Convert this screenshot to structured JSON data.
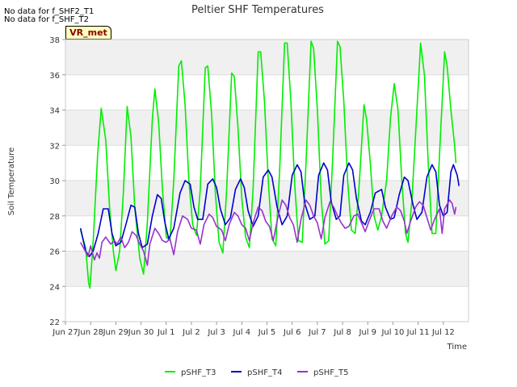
{
  "notices": [
    "No data for f_SHF2_T1",
    "No data for f_SHF_T2"
  ],
  "badge": "VR_met",
  "chart_data": {
    "type": "line",
    "title": "Peltier SHF Temperatures",
    "xlabel": "Time",
    "ylabel": "Soil Temperature",
    "xlim": [
      0,
      16
    ],
    "ylim": [
      22,
      38
    ],
    "yticks": [
      22,
      24,
      26,
      28,
      30,
      32,
      34,
      36,
      38
    ],
    "xticks": [
      {
        "x": 0,
        "label": "Jun 27"
      },
      {
        "x": 1,
        "label": "Jun 28"
      },
      {
        "x": 2,
        "label": "Jun 29"
      },
      {
        "x": 3,
        "label": "Jun 30"
      },
      {
        "x": 4,
        "label": "Jul 1"
      },
      {
        "x": 5,
        "label": "Jul 2"
      },
      {
        "x": 6,
        "label": "Jul 3"
      },
      {
        "x": 7,
        "label": "Jul 4"
      },
      {
        "x": 8,
        "label": "Jul 5"
      },
      {
        "x": 9,
        "label": "Jul 6"
      },
      {
        "x": 10,
        "label": "Jul 7"
      },
      {
        "x": 11,
        "label": "Jul 8"
      },
      {
        "x": 12,
        "label": "Jul 9"
      },
      {
        "x": 13,
        "label": "Jul 10"
      },
      {
        "x": 14,
        "label": "Jul 11"
      },
      {
        "x": 15,
        "label": "Jul 12"
      }
    ],
    "xtick_labels_display": [
      "Jun 27",
      "Jun 28",
      "Jun 29",
      "Jun 30",
      "Jul 1",
      "Jul 2",
      "Jul 3",
      "Jul 4",
      "Jul 5",
      "Jul 6",
      "Jul 7",
      "Jul 8",
      "Jul 9",
      "Jul 10",
      "Jul 11",
      "Jul 12"
    ],
    "legend_position": "bottom-center",
    "grid": true,
    "series": [
      {
        "name": "pSHF_T3",
        "color": "#00ee00",
        "points": [
          [
            0.6,
            27.2
          ],
          [
            0.8,
            26.2
          ],
          [
            0.92,
            24.2
          ],
          [
            0.97,
            23.9
          ],
          [
            1.1,
            26.5
          ],
          [
            1.28,
            31.5
          ],
          [
            1.42,
            34.1
          ],
          [
            1.6,
            32.3
          ],
          [
            1.75,
            28.5
          ],
          [
            1.9,
            26.0
          ],
          [
            2.0,
            24.9
          ],
          [
            2.15,
            26.0
          ],
          [
            2.3,
            29.3
          ],
          [
            2.45,
            34.2
          ],
          [
            2.6,
            32.5
          ],
          [
            2.75,
            28.5
          ],
          [
            2.95,
            25.6
          ],
          [
            3.1,
            24.7
          ],
          [
            3.25,
            27.6
          ],
          [
            3.45,
            33.5
          ],
          [
            3.55,
            35.2
          ],
          [
            3.7,
            33.3
          ],
          [
            3.85,
            29.5
          ],
          [
            4.0,
            26.8
          ],
          [
            4.15,
            26.6
          ],
          [
            4.3,
            30.0
          ],
          [
            4.5,
            36.5
          ],
          [
            4.6,
            36.8
          ],
          [
            4.75,
            34.3
          ],
          [
            4.9,
            30.0
          ],
          [
            5.05,
            27.5
          ],
          [
            5.2,
            26.9
          ],
          [
            5.35,
            29.5
          ],
          [
            5.55,
            36.4
          ],
          [
            5.65,
            36.5
          ],
          [
            5.8,
            33.8
          ],
          [
            5.95,
            29.3
          ],
          [
            6.1,
            26.5
          ],
          [
            6.25,
            25.9
          ],
          [
            6.4,
            29.5
          ],
          [
            6.6,
            36.1
          ],
          [
            6.7,
            35.9
          ],
          [
            6.85,
            33.0
          ],
          [
            7.0,
            29.0
          ],
          [
            7.15,
            26.8
          ],
          [
            7.3,
            26.2
          ],
          [
            7.45,
            29.5
          ],
          [
            7.65,
            37.3
          ],
          [
            7.75,
            37.3
          ],
          [
            7.9,
            34.5
          ],
          [
            8.05,
            30.0
          ],
          [
            8.2,
            26.7
          ],
          [
            8.35,
            26.3
          ],
          [
            8.5,
            30.5
          ],
          [
            8.7,
            37.8
          ],
          [
            8.8,
            37.8
          ],
          [
            8.95,
            34.5
          ],
          [
            9.1,
            29.8
          ],
          [
            9.25,
            26.6
          ],
          [
            9.4,
            26.5
          ],
          [
            9.55,
            31.0
          ],
          [
            9.75,
            37.9
          ],
          [
            9.85,
            37.5
          ],
          [
            10.0,
            34.0
          ],
          [
            10.15,
            29.0
          ],
          [
            10.3,
            26.4
          ],
          [
            10.45,
            26.6
          ],
          [
            10.6,
            31.0
          ],
          [
            10.8,
            37.9
          ],
          [
            10.9,
            37.6
          ],
          [
            11.05,
            34.5
          ],
          [
            11.2,
            30.0
          ],
          [
            11.35,
            27.2
          ],
          [
            11.5,
            27.0
          ],
          [
            11.65,
            29.5
          ],
          [
            11.85,
            34.3
          ],
          [
            11.95,
            33.5
          ],
          [
            12.1,
            31.0
          ],
          [
            12.25,
            28.0
          ],
          [
            12.4,
            27.2
          ],
          [
            12.55,
            28.0
          ],
          [
            12.75,
            30.0
          ],
          [
            12.9,
            33.5
          ],
          [
            13.05,
            35.5
          ],
          [
            13.2,
            34.0
          ],
          [
            13.35,
            30.0
          ],
          [
            13.5,
            27.0
          ],
          [
            13.6,
            26.5
          ],
          [
            13.75,
            28.8
          ],
          [
            13.95,
            34.0
          ],
          [
            14.1,
            37.8
          ],
          [
            14.25,
            36.0
          ],
          [
            14.4,
            31.0
          ],
          [
            14.55,
            27.0
          ],
          [
            14.7,
            27.0
          ],
          [
            14.85,
            31.5
          ],
          [
            15.05,
            37.3
          ],
          [
            15.15,
            36.5
          ],
          [
            15.3,
            34.0
          ],
          [
            15.45,
            32.0
          ],
          [
            15.5,
            31.0
          ]
        ]
      },
      {
        "name": "pSHF_T4",
        "color": "#0000cc",
        "points": [
          [
            0.6,
            27.3
          ],
          [
            0.8,
            26.0
          ],
          [
            0.95,
            25.7
          ],
          [
            1.1,
            26.0
          ],
          [
            1.3,
            27.0
          ],
          [
            1.5,
            28.4
          ],
          [
            1.7,
            28.4
          ],
          [
            1.85,
            27.0
          ],
          [
            2.0,
            26.3
          ],
          [
            2.2,
            26.5
          ],
          [
            2.4,
            27.5
          ],
          [
            2.6,
            28.6
          ],
          [
            2.75,
            28.5
          ],
          [
            2.9,
            27.0
          ],
          [
            3.05,
            26.2
          ],
          [
            3.25,
            26.4
          ],
          [
            3.45,
            28.0
          ],
          [
            3.65,
            29.2
          ],
          [
            3.8,
            29.0
          ],
          [
            3.95,
            27.6
          ],
          [
            4.1,
            26.7
          ],
          [
            4.3,
            27.3
          ],
          [
            4.55,
            29.3
          ],
          [
            4.75,
            30.0
          ],
          [
            4.95,
            29.8
          ],
          [
            5.1,
            28.5
          ],
          [
            5.25,
            27.8
          ],
          [
            5.45,
            27.8
          ],
          [
            5.65,
            29.8
          ],
          [
            5.85,
            30.1
          ],
          [
            6.0,
            29.6
          ],
          [
            6.15,
            28.4
          ],
          [
            6.35,
            27.5
          ],
          [
            6.55,
            27.9
          ],
          [
            6.75,
            29.5
          ],
          [
            6.95,
            30.1
          ],
          [
            7.1,
            29.6
          ],
          [
            7.25,
            28.3
          ],
          [
            7.45,
            27.4
          ],
          [
            7.65,
            28.0
          ],
          [
            7.85,
            30.2
          ],
          [
            8.05,
            30.6
          ],
          [
            8.2,
            30.2
          ],
          [
            8.4,
            28.5
          ],
          [
            8.6,
            27.5
          ],
          [
            8.8,
            28.0
          ],
          [
            9.0,
            30.3
          ],
          [
            9.2,
            30.9
          ],
          [
            9.35,
            30.5
          ],
          [
            9.5,
            28.7
          ],
          [
            9.7,
            27.8
          ],
          [
            9.9,
            28.0
          ],
          [
            10.05,
            30.3
          ],
          [
            10.25,
            31.0
          ],
          [
            10.4,
            30.6
          ],
          [
            10.55,
            28.8
          ],
          [
            10.75,
            27.8
          ],
          [
            10.9,
            28.0
          ],
          [
            11.05,
            30.3
          ],
          [
            11.25,
            31.0
          ],
          [
            11.4,
            30.6
          ],
          [
            11.55,
            29.0
          ],
          [
            11.75,
            27.7
          ],
          [
            11.9,
            27.5
          ],
          [
            12.1,
            28.2
          ],
          [
            12.3,
            29.3
          ],
          [
            12.55,
            29.5
          ],
          [
            12.7,
            28.5
          ],
          [
            12.9,
            27.8
          ],
          [
            13.05,
            27.9
          ],
          [
            13.25,
            29.2
          ],
          [
            13.45,
            30.2
          ],
          [
            13.6,
            30.0
          ],
          [
            13.8,
            28.6
          ],
          [
            13.95,
            27.8
          ],
          [
            14.15,
            28.2
          ],
          [
            14.35,
            30.2
          ],
          [
            14.55,
            30.9
          ],
          [
            14.7,
            30.5
          ],
          [
            14.85,
            28.6
          ],
          [
            15.0,
            28.0
          ],
          [
            15.15,
            28.2
          ],
          [
            15.3,
            30.5
          ],
          [
            15.4,
            30.9
          ],
          [
            15.55,
            30.3
          ],
          [
            15.6,
            29.9
          ],
          [
            15.62,
            29.7
          ]
        ]
      },
      {
        "name": "pSHF_T5",
        "color": "#9933cc",
        "points": [
          [
            0.6,
            26.5
          ],
          [
            0.75,
            26.1
          ],
          [
            0.9,
            25.7
          ],
          [
            1.0,
            26.3
          ],
          [
            1.15,
            25.5
          ],
          [
            1.25,
            25.9
          ],
          [
            1.35,
            25.6
          ],
          [
            1.45,
            26.5
          ],
          [
            1.6,
            26.8
          ],
          [
            1.8,
            26.4
          ],
          [
            1.95,
            26.6
          ],
          [
            2.05,
            26.4
          ],
          [
            2.2,
            26.8
          ],
          [
            2.35,
            26.2
          ],
          [
            2.5,
            26.5
          ],
          [
            2.65,
            27.1
          ],
          [
            2.8,
            26.9
          ],
          [
            2.95,
            26.4
          ],
          [
            3.1,
            26.0
          ],
          [
            3.25,
            25.2
          ],
          [
            3.35,
            26.4
          ],
          [
            3.55,
            27.3
          ],
          [
            3.7,
            27.0
          ],
          [
            3.85,
            26.6
          ],
          [
            4.0,
            26.5
          ],
          [
            4.15,
            26.7
          ],
          [
            4.3,
            25.8
          ],
          [
            4.45,
            27.1
          ],
          [
            4.65,
            28.0
          ],
          [
            4.85,
            27.8
          ],
          [
            5.0,
            27.3
          ],
          [
            5.2,
            27.2
          ],
          [
            5.35,
            26.4
          ],
          [
            5.5,
            27.5
          ],
          [
            5.7,
            28.1
          ],
          [
            5.85,
            27.9
          ],
          [
            6.0,
            27.4
          ],
          [
            6.2,
            27.2
          ],
          [
            6.35,
            26.6
          ],
          [
            6.5,
            27.5
          ],
          [
            6.7,
            28.2
          ],
          [
            6.85,
            28.0
          ],
          [
            7.0,
            27.5
          ],
          [
            7.15,
            27.3
          ],
          [
            7.3,
            26.6
          ],
          [
            7.45,
            27.6
          ],
          [
            7.65,
            28.5
          ],
          [
            7.8,
            28.3
          ],
          [
            7.95,
            27.7
          ],
          [
            8.1,
            27.4
          ],
          [
            8.25,
            26.6
          ],
          [
            8.4,
            27.7
          ],
          [
            8.6,
            28.9
          ],
          [
            8.75,
            28.6
          ],
          [
            8.9,
            27.9
          ],
          [
            9.05,
            27.5
          ],
          [
            9.2,
            26.5
          ],
          [
            9.35,
            27.8
          ],
          [
            9.55,
            28.9
          ],
          [
            9.7,
            28.6
          ],
          [
            9.85,
            28.0
          ],
          [
            10.0,
            27.6
          ],
          [
            10.15,
            26.7
          ],
          [
            10.3,
            27.9
          ],
          [
            10.5,
            28.8
          ],
          [
            10.65,
            28.5
          ],
          [
            10.8,
            28.0
          ],
          [
            10.95,
            27.6
          ],
          [
            11.1,
            27.3
          ],
          [
            11.25,
            27.4
          ],
          [
            11.45,
            28.0
          ],
          [
            11.6,
            28.1
          ],
          [
            11.75,
            27.6
          ],
          [
            11.9,
            27.1
          ],
          [
            12.05,
            27.7
          ],
          [
            12.25,
            28.4
          ],
          [
            12.45,
            28.4
          ],
          [
            12.6,
            27.7
          ],
          [
            12.75,
            27.3
          ],
          [
            12.95,
            28.0
          ],
          [
            13.15,
            28.5
          ],
          [
            13.3,
            28.3
          ],
          [
            13.45,
            27.7
          ],
          [
            13.55,
            27.0
          ],
          [
            13.7,
            27.7
          ],
          [
            13.9,
            28.5
          ],
          [
            14.05,
            28.8
          ],
          [
            14.2,
            28.6
          ],
          [
            14.35,
            27.9
          ],
          [
            14.5,
            27.2
          ],
          [
            14.65,
            27.8
          ],
          [
            14.85,
            28.4
          ],
          [
            14.95,
            27.0
          ],
          [
            15.05,
            28.4
          ],
          [
            15.25,
            28.9
          ],
          [
            15.35,
            28.7
          ],
          [
            15.45,
            28.1
          ],
          [
            15.5,
            28.5
          ]
        ]
      }
    ]
  }
}
